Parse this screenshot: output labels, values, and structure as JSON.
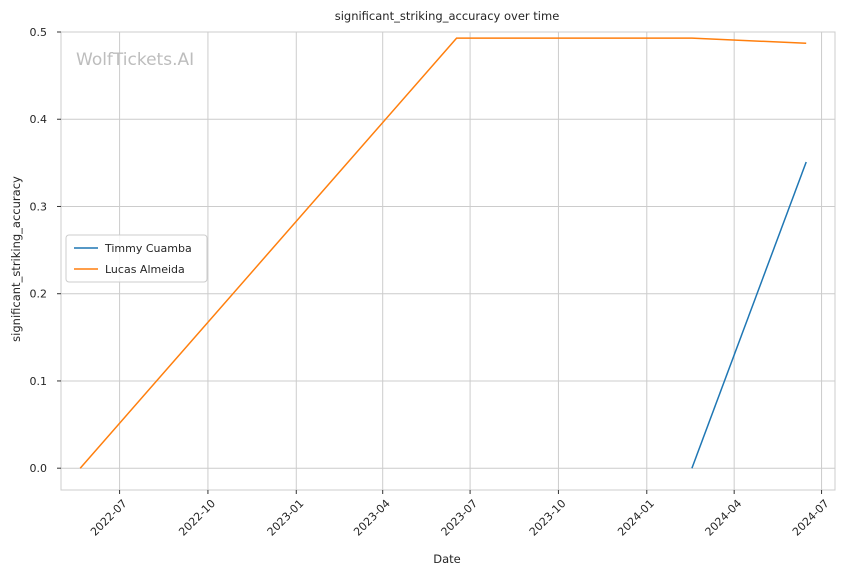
{
  "chart_data": {
    "type": "line",
    "title": "significant_striking_accuracy over time",
    "xlabel": "Date",
    "ylabel": "significant_striking_accuracy",
    "watermark": "WolfTickets.AI",
    "x_range": [
      "2022-05-01",
      "2024-07-15"
    ],
    "ylim": [
      -0.025,
      0.5
    ],
    "x_ticks": [
      "2022-07-01",
      "2022-10-01",
      "2023-01-01",
      "2023-04-01",
      "2023-07-01",
      "2023-10-01",
      "2024-01-01",
      "2024-04-01",
      "2024-07-01"
    ],
    "x_tick_labels": [
      "2022-07",
      "2022-10",
      "2023-01",
      "2023-04",
      "2023-07",
      "2023-10",
      "2024-01",
      "2024-04",
      "2024-07"
    ],
    "y_ticks": [
      0.0,
      0.1,
      0.2,
      0.3,
      0.4,
      0.5
    ],
    "y_tick_labels": [
      "0.0",
      "0.1",
      "0.2",
      "0.3",
      "0.4",
      "0.5"
    ],
    "grid": true,
    "legend_position": "center-left",
    "series": [
      {
        "name": "Timmy Cuamba",
        "color": "#1f77b4",
        "points": [
          {
            "x": "2024-02-17",
            "y": 0.0
          },
          {
            "x": "2024-06-15",
            "y": 0.351
          }
        ]
      },
      {
        "name": "Lucas Almeida",
        "color": "#ff7f0e",
        "points": [
          {
            "x": "2022-05-21",
            "y": 0.0
          },
          {
            "x": "2023-06-17",
            "y": 0.493
          },
          {
            "x": "2024-02-17",
            "y": 0.493
          },
          {
            "x": "2024-06-15",
            "y": 0.487
          }
        ]
      }
    ]
  }
}
